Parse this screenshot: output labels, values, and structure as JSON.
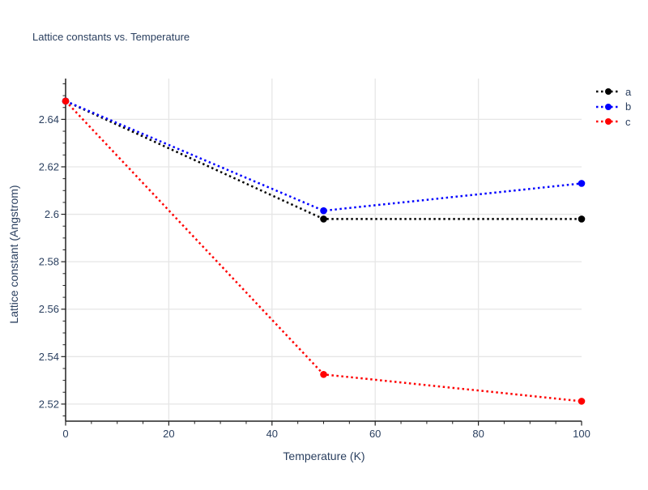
{
  "page": {
    "background": "#ffffff"
  },
  "chart_data": {
    "type": "line",
    "title": "Lattice constants vs. Temperature",
    "xlabel": "Temperature (K)",
    "ylabel": "Lattice constant (Angstrom)",
    "x": [
      0,
      50,
      100
    ],
    "series": [
      {
        "name": "a",
        "color": "#000000",
        "values": [
          2.6477,
          2.598,
          2.598
        ]
      },
      {
        "name": "b",
        "color": "#0000ff",
        "values": [
          2.6477,
          2.6015,
          2.613
        ]
      },
      {
        "name": "c",
        "color": "#ff0000",
        "values": [
          2.6477,
          2.5325,
          2.5212
        ]
      }
    ],
    "xlim": [
      0,
      100
    ],
    "ylim": [
      2.5128,
      2.6572
    ],
    "x_ticks": [
      0,
      20,
      40,
      60,
      80,
      100
    ],
    "x_tick_labels": [
      "0",
      "20",
      "40",
      "60",
      "80",
      "100"
    ],
    "y_ticks": [
      2.52,
      2.54,
      2.56,
      2.58,
      2.6,
      2.62,
      2.64
    ],
    "y_tick_labels": [
      "2.52",
      "2.54",
      "2.56",
      "2.58",
      "2.6",
      "2.62",
      "2.64"
    ],
    "x_minor_step": 5,
    "y_minor_step": 0.005,
    "line_style": "dotted",
    "marker": "circle",
    "grid": true,
    "legend": {
      "entries": [
        "a",
        "b",
        "c"
      ],
      "position": "top-right-outside"
    },
    "colors": {
      "text": "#2a3f5f",
      "grid": "#e6e6e6",
      "axis": "#222222"
    }
  }
}
